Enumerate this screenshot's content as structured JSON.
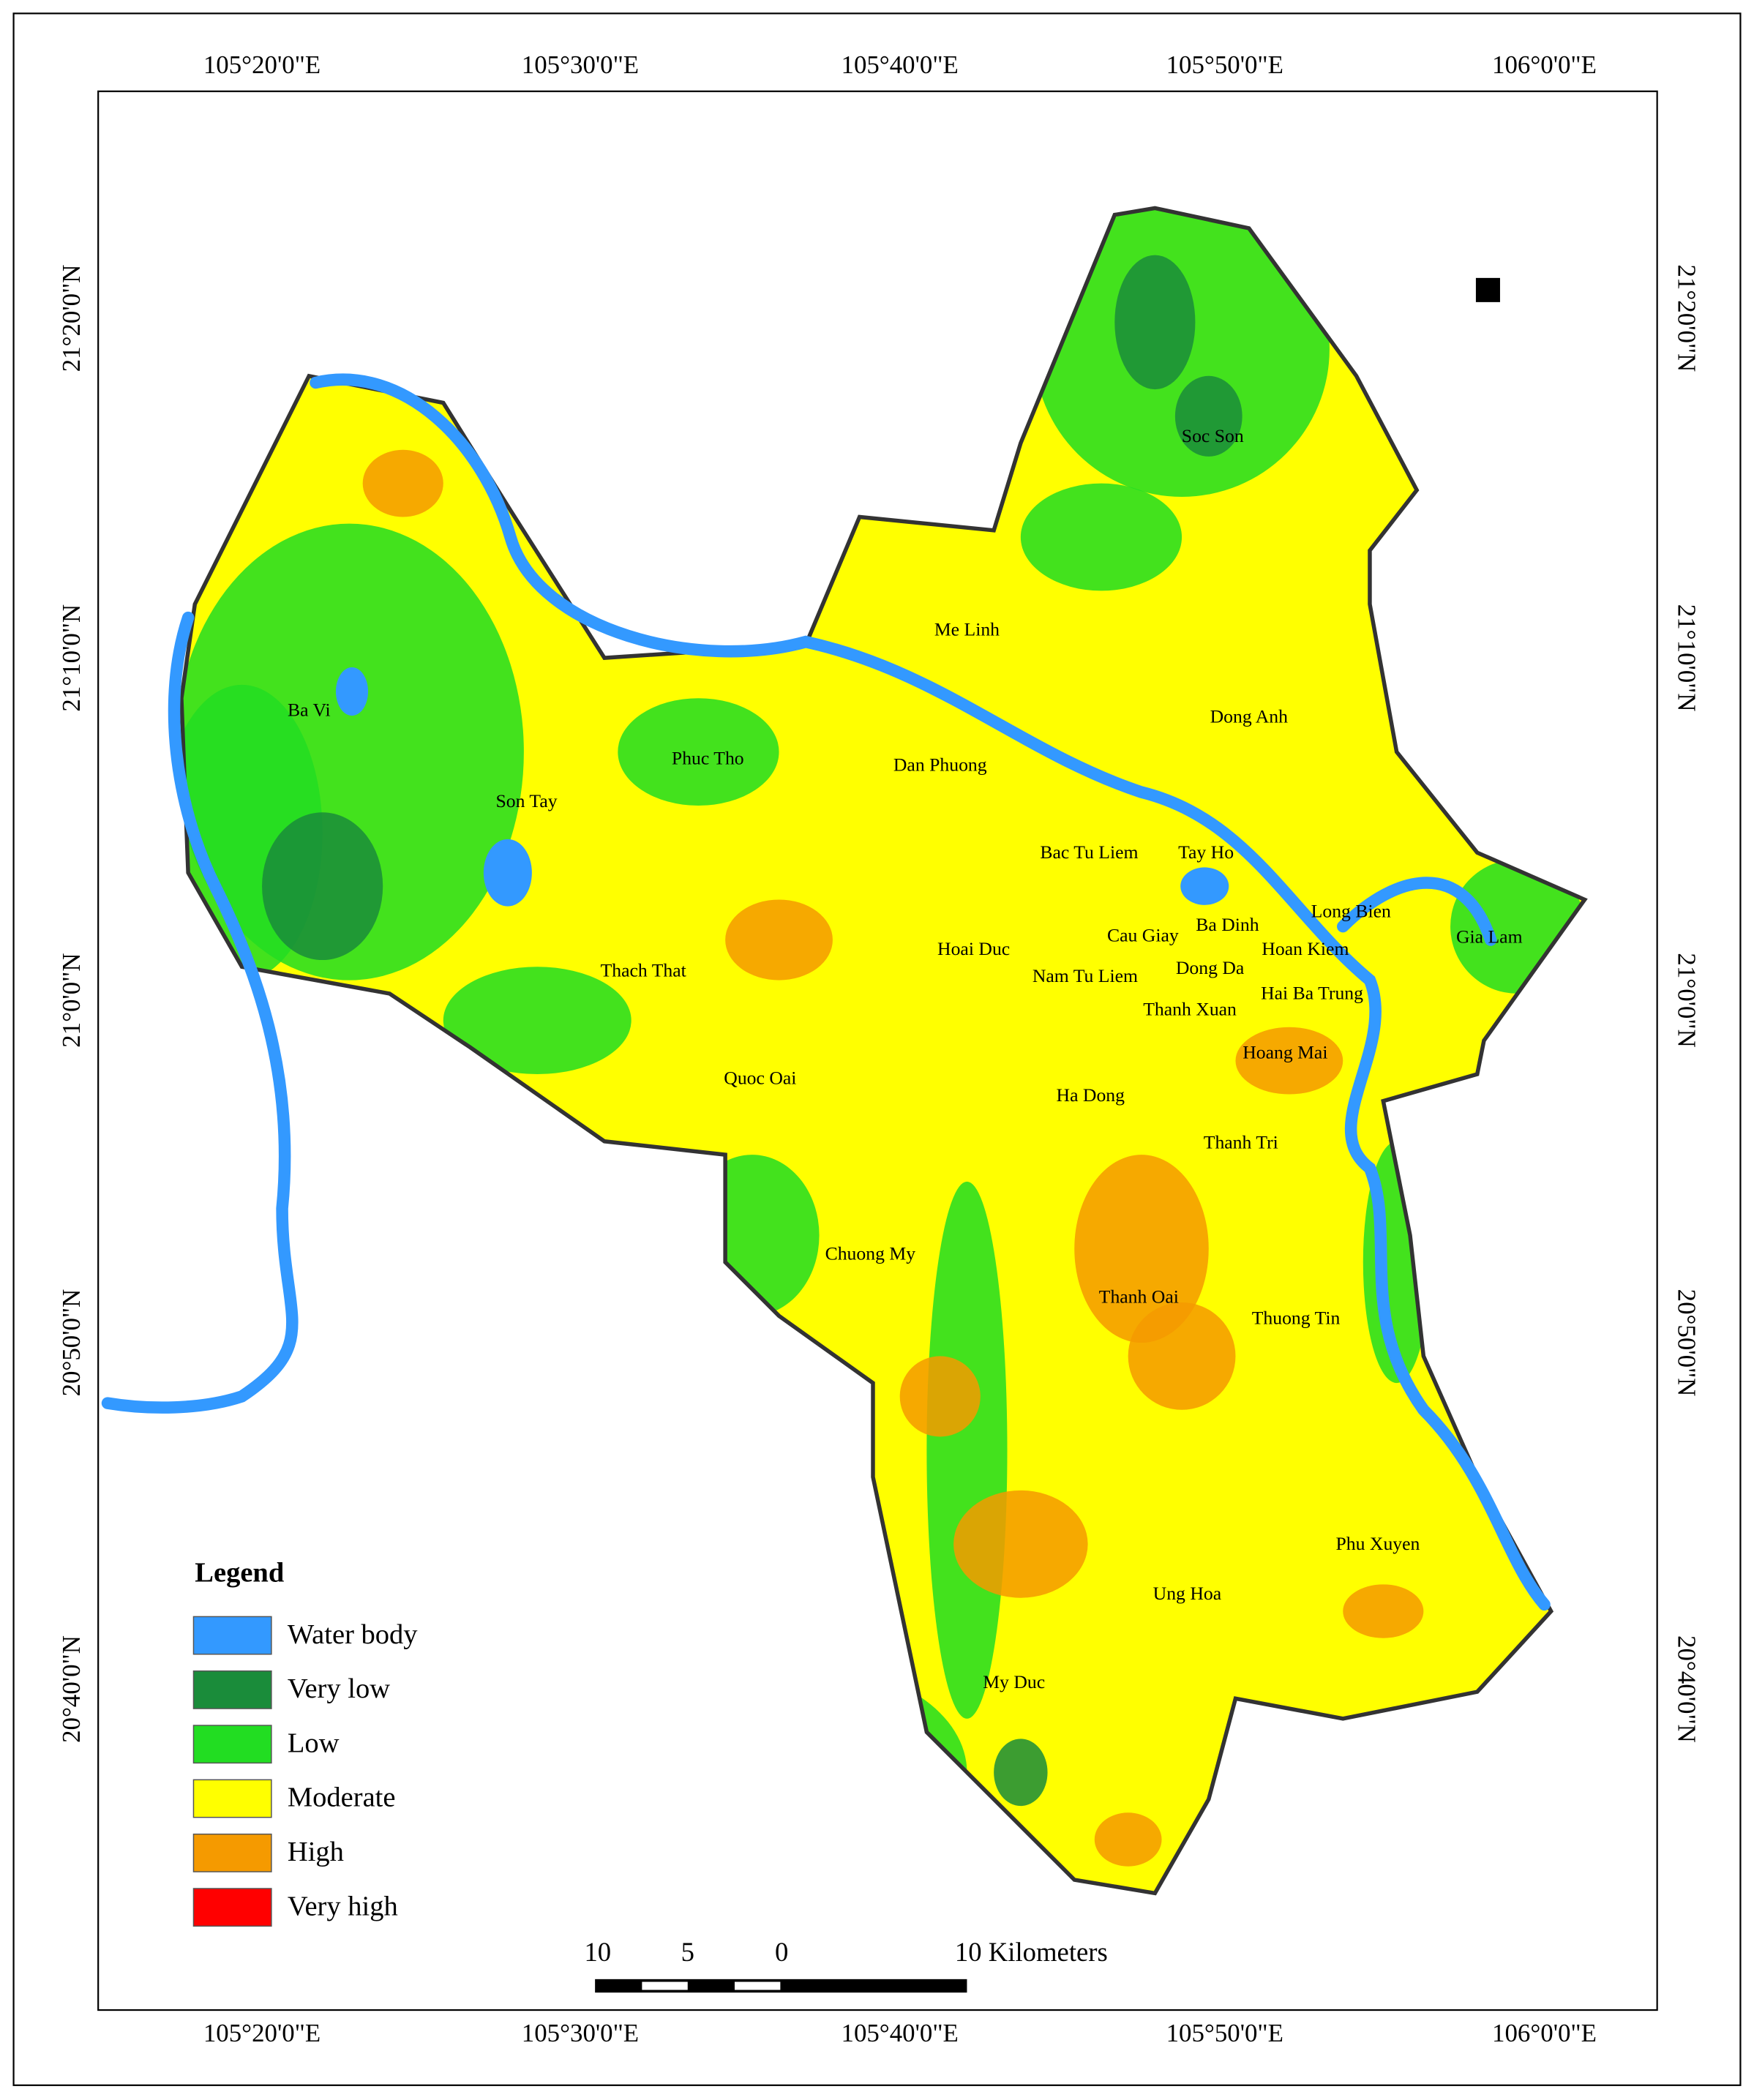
{
  "map": {
    "lon_labels_top": [
      "105°20'0\"E",
      "105°30'0\"E",
      "105°40'0\"E",
      "105°50'0\"E",
      "106°0'0\"E"
    ],
    "lon_labels_bottom": [
      "105°20'0\"E",
      "105°30'0\"E",
      "105°40'0\"E",
      "105°50'0\"E",
      "106°0'0\"E"
    ],
    "lat_labels_left": [
      "21°20'0\"N",
      "21°10'0\"N",
      "21°0'0\"N",
      "20°50'0\"N",
      "20°40'0\"N"
    ],
    "lat_labels_right": [
      "21°20'0\"N",
      "21°10'0\"N",
      "21°0'0\"N",
      "20°50'0\"N",
      "20°40'0\"N"
    ],
    "districts": [
      "Soc Son",
      "Me Linh",
      "Dong Anh",
      "Ba Vi",
      "Phuc Tho",
      "Dan Phuong",
      "Son Tay",
      "Bac Tu Liem",
      "Tay Ho",
      "Long Bien",
      "Gia Lam",
      "Cau Giay",
      "Ba Dinh",
      "Hoai Duc",
      "Hoan Kiem",
      "Thach That",
      "Nam Tu Liem",
      "Dong Da",
      "Hai Ba Trung",
      "Thanh Xuan",
      "Hoang Mai",
      "Quoc Oai",
      "Ha Dong",
      "Thanh Tri",
      "Chuong My",
      "Thanh Oai",
      "Thuong Tin",
      "Phu Xuyen",
      "Ung Hoa",
      "My Duc"
    ],
    "legend": {
      "title": "Legend",
      "items": [
        {
          "label": "Water body",
          "color": "#3399ff"
        },
        {
          "label": "Very low",
          "color": "#1a8c3a"
        },
        {
          "label": "Low",
          "color": "#22dd22"
        },
        {
          "label": "Moderate",
          "color": "#ffff00"
        },
        {
          "label": "High",
          "color": "#f59a00"
        },
        {
          "label": "Very high",
          "color": "#ff0000"
        }
      ]
    },
    "scale_bar": {
      "labels": [
        "10",
        "5",
        "0",
        "10 Kilometers"
      ]
    }
  }
}
